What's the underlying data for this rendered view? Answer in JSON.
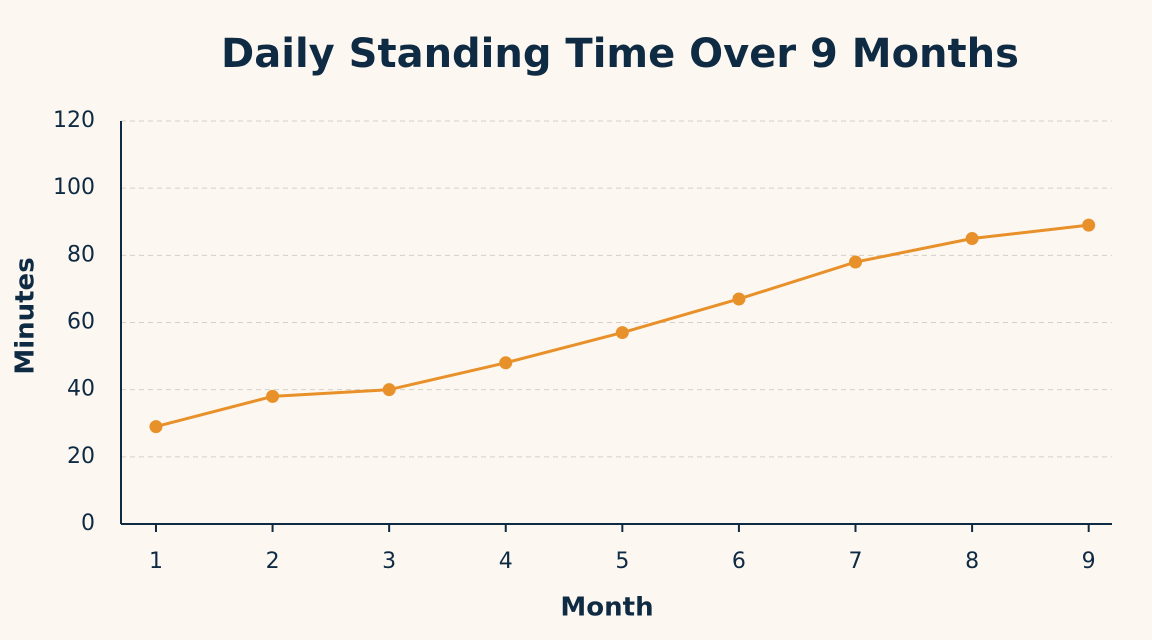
{
  "chart_data": {
    "type": "line",
    "title": "Daily Standing Time Over 9 Months",
    "x_label": "Month",
    "y_label": "Minutes",
    "x": [
      1,
      2,
      3,
      4,
      5,
      6,
      7,
      8,
      9
    ],
    "series": [
      {
        "name": "Minutes",
        "color": "#e8902a",
        "values": [
          29,
          38,
          40,
          48,
          57,
          67,
          78,
          85,
          89
        ]
      }
    ],
    "xlim": [
      0.7,
      9.2
    ],
    "xticks": [
      1,
      2,
      3,
      4,
      5,
      6,
      7,
      8,
      9
    ],
    "ylim": [
      0,
      120
    ],
    "yticks": [
      0,
      20,
      40,
      60,
      80,
      100,
      120
    ],
    "grid": true
  }
}
